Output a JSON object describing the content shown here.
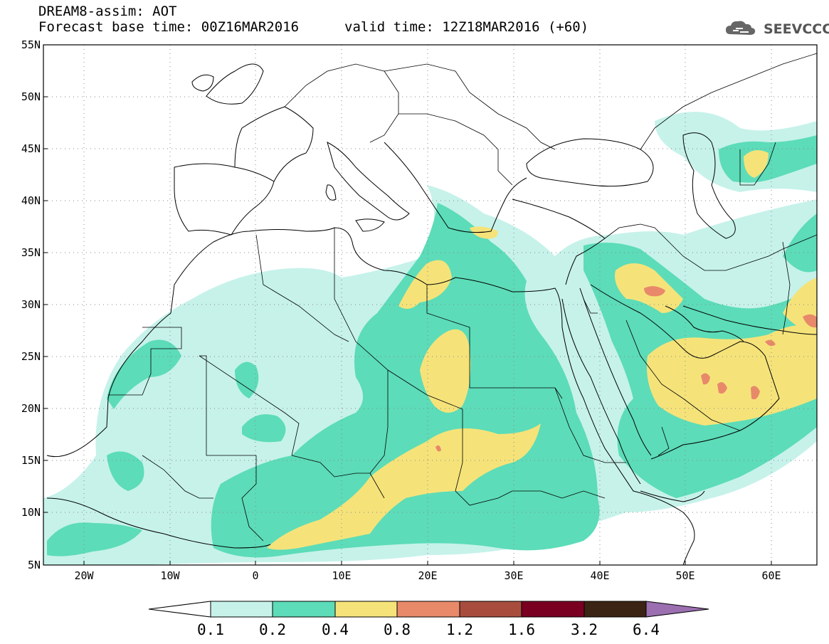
{
  "header": {
    "title_line1": "DREAM8-assim: AOT",
    "title_line2": "Forecast base time: 00Z16MAR2016",
    "valid_time": "valid time: 12Z18MAR2016 (+60)",
    "logo_text": "SEEVCCC",
    "logo_icon": "cloud-icon"
  },
  "map": {
    "lon_range": [
      -25,
      65
    ],
    "lat_range": [
      5,
      55
    ],
    "grid": "dotted",
    "lat_labels": [
      "55N",
      "50N",
      "45N",
      "40N",
      "35N",
      "30N",
      "25N",
      "20N",
      "15N",
      "10N",
      "5N"
    ],
    "lon_labels": [
      "20W",
      "10W",
      "0",
      "10E",
      "20E",
      "30E",
      "40E",
      "50E",
      "60E"
    ]
  },
  "colorbar": {
    "labels": [
      "0.1",
      "0.2",
      "0.4",
      "0.8",
      "1.2",
      "1.6",
      "3.2",
      "6.4"
    ],
    "colors": [
      "#c6f2ea",
      "#5cdcb8",
      "#f5e37a",
      "#e8896a",
      "#a84d3e",
      "#7a0022",
      "#3b2413",
      "#9b6fb0"
    ],
    "below_color": "#ffffff"
  }
}
